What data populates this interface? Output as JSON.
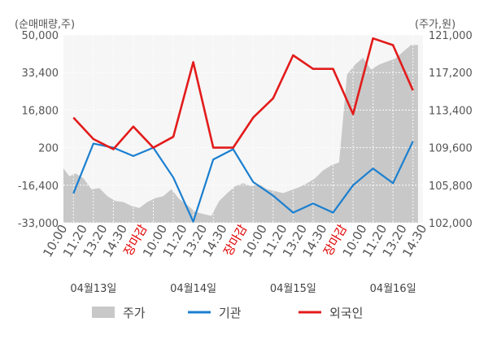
{
  "chart_data": {
    "type": "line",
    "left_unit": "(순매매량,주)",
    "right_unit": "(주가,원)",
    "left_axis": {
      "ticks": [
        "50,000",
        "33,400",
        "16,800",
        "200",
        "-16,400",
        "-33,000"
      ],
      "range": [
        -33000,
        50000
      ]
    },
    "right_axis": {
      "ticks": [
        "121,000",
        "117,200",
        "113,400",
        "109,600",
        "105,800",
        "102,000"
      ],
      "range": [
        102000,
        121000
      ]
    },
    "x_labels": [
      {
        "text": "10:00",
        "color": "#555555"
      },
      {
        "text": "11:20",
        "color": "#555555"
      },
      {
        "text": "13:20",
        "color": "#555555"
      },
      {
        "text": "14:30",
        "color": "#555555"
      },
      {
        "text": "장마감",
        "color": "#e00000"
      },
      {
        "text": "10:00",
        "color": "#555555"
      },
      {
        "text": "11:20",
        "color": "#555555"
      },
      {
        "text": "13:20",
        "color": "#555555"
      },
      {
        "text": "14:30",
        "color": "#555555"
      },
      {
        "text": "장마감",
        "color": "#e00000"
      },
      {
        "text": "10:00",
        "color": "#555555"
      },
      {
        "text": "11:20",
        "color": "#555555"
      },
      {
        "text": "13:20",
        "color": "#555555"
      },
      {
        "text": "14:30",
        "color": "#555555"
      },
      {
        "text": "장마감",
        "color": "#e00000"
      },
      {
        "text": "10:00",
        "color": "#555555"
      },
      {
        "text": "11:20",
        "color": "#555555"
      },
      {
        "text": "13:20",
        "color": "#555555"
      },
      {
        "text": "14:30",
        "color": "#555555"
      }
    ],
    "days": [
      "04월13일",
      "04월14일",
      "04월15일",
      "04월16일"
    ],
    "legend": [
      {
        "name": "주가",
        "color": "#c8c8c8",
        "kind": "area"
      },
      {
        "name": "기관",
        "color": "#1a7fd0",
        "kind": "line"
      },
      {
        "name": "외국인",
        "color": "#e31b1b",
        "kind": "line"
      }
    ],
    "series": [
      {
        "name": "기관",
        "axis": "left",
        "color": "#1a7fd0",
        "x": [
          0.5,
          1.5,
          2.5,
          3.5,
          4.5,
          5.5,
          6.5,
          7.5,
          8.5,
          9.5,
          10.5,
          11.5,
          12.5,
          13.5,
          14.5,
          15.5,
          16.5,
          17.5
        ],
        "values": [
          -20000,
          2000,
          200,
          -3500,
          200,
          -13000,
          -32500,
          -5000,
          -500,
          -15000,
          -21000,
          -28500,
          -24500,
          -28500,
          -16400,
          -9000,
          -15500,
          3000
        ]
      },
      {
        "name": "외국인",
        "axis": "left",
        "color": "#e31b1b",
        "x": [
          0.5,
          1.5,
          2.5,
          3.5,
          4.5,
          5.5,
          6.5,
          7.5,
          8.5,
          9.5,
          10.5,
          11.5,
          12.5,
          13.5,
          14.5,
          15.5,
          16.5,
          17.5
        ],
        "values": [
          13500,
          4000,
          -500,
          9500,
          200,
          5000,
          38000,
          200,
          200,
          13500,
          22000,
          41000,
          35000,
          35000,
          15000,
          48500,
          45500,
          25500
        ]
      },
      {
        "name": "주가",
        "axis": "right",
        "color": "#c8c8c8",
        "x": [
          0.0,
          0.3,
          0.6,
          1.0,
          1.4,
          1.8,
          2.2,
          2.6,
          3.0,
          3.4,
          3.8,
          4.2,
          4.6,
          5.0,
          5.4,
          5.8,
          6.2,
          6.6,
          7.0,
          7.4,
          7.8,
          8.2,
          8.6,
          9.0,
          9.4,
          9.8,
          10.2,
          10.6,
          11.0,
          11.4,
          11.8,
          12.2,
          12.6,
          13.0,
          13.4,
          13.8,
          14.2,
          14.6,
          15.0,
          15.4,
          15.8,
          16.2,
          16.6,
          17.0,
          17.4,
          17.75
        ],
        "values": [
          107500,
          106700,
          107000,
          106500,
          105400,
          105500,
          104700,
          104200,
          104100,
          103700,
          103500,
          104100,
          104500,
          104700,
          105400,
          104400,
          103800,
          103100,
          102900,
          102700,
          104200,
          105000,
          105700,
          106000,
          105700,
          105900,
          105400,
          105200,
          105000,
          105300,
          105600,
          106000,
          106500,
          107300,
          107800,
          108100,
          117000,
          118000,
          118700,
          117500,
          118000,
          118300,
          118600,
          119300,
          120000,
          120000
        ]
      }
    ]
  }
}
